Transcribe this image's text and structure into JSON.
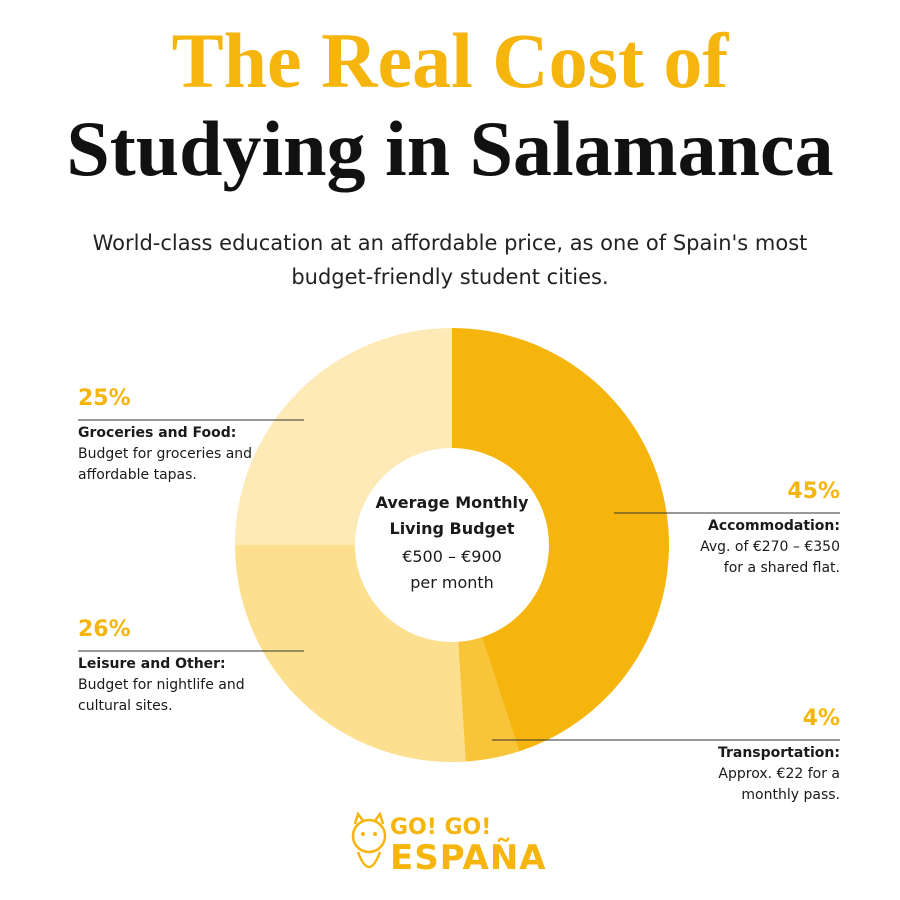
{
  "header": {
    "title_line1": "The Real Cost of",
    "title_line2": "Studying in Salamanca",
    "subtitle": "World-class education at an affordable price, as one of Spain's most budget-friendly student cities."
  },
  "chart_data": {
    "type": "pie",
    "donut": true,
    "categories": [
      "Accommodation:",
      "Transportation:",
      "Leisure and Other:",
      "Groceries and Food:"
    ],
    "values": [
      45,
      4,
      26,
      25
    ],
    "value_labels": [
      "45%",
      "4%",
      "26%",
      "25%"
    ],
    "descriptions": [
      "Avg. of €270 – €350 for a shared flat.",
      "Approx. €22 for a monthly pass.",
      "Budget for nightlife and cultural sites.",
      "Budget for groceries and affordable tapas."
    ],
    "colors": [
      "#f5b50d",
      "#f8c53a",
      "#fde08f",
      "#feeab6"
    ],
    "center_label": {
      "title": "Average Monthly Living Budget",
      "amount": "€500 – €900",
      "unit": "per month"
    }
  },
  "footer": {
    "logo_line1": "GO! GO!",
    "logo_line2": "ESPAÑA"
  }
}
